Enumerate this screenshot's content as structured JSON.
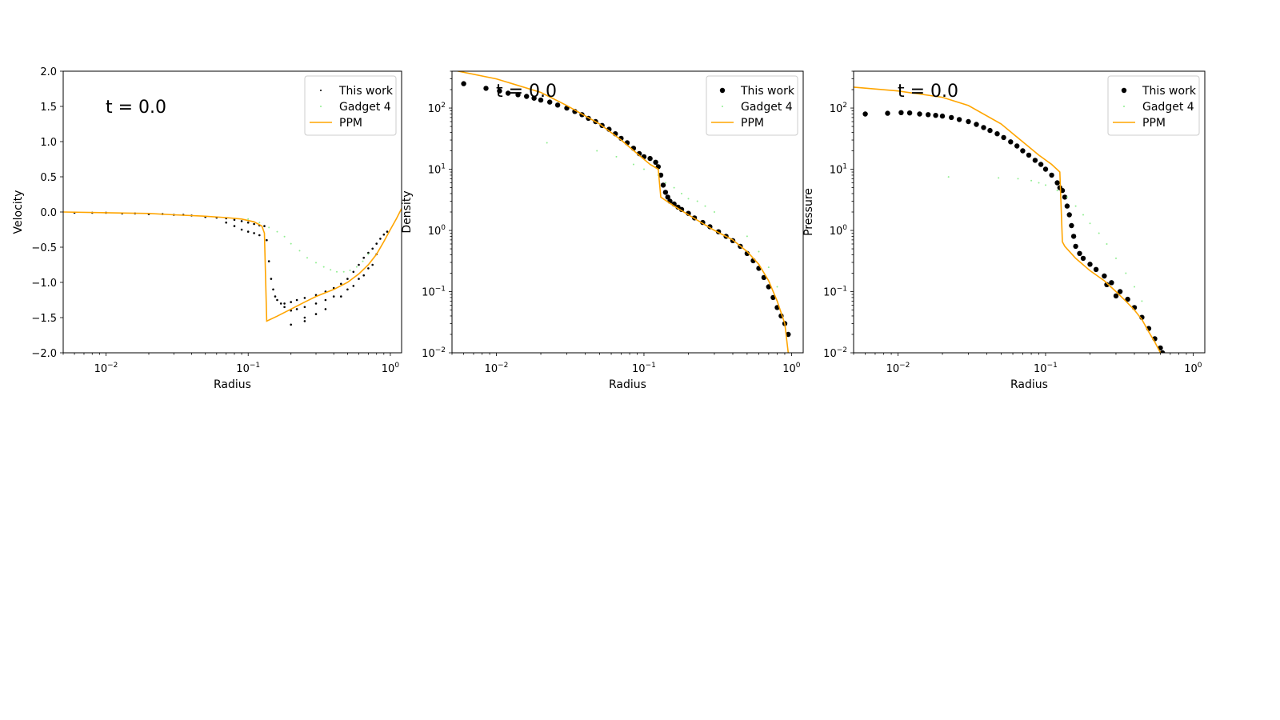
{
  "figure": {
    "background": "#ffffff"
  },
  "legend_labels": [
    "This work",
    "Gadget 4",
    "PPM"
  ],
  "chart_data": [
    {
      "type": "scatter",
      "title": "",
      "annotation": "t = 0.0",
      "xlabel": "Radius",
      "ylabel": "Velocity",
      "xscale": "log",
      "yscale": "linear",
      "xlim": [
        0.005,
        1.2
      ],
      "ylim": [
        -2.0,
        2.0
      ],
      "x_ticks": [
        0.01,
        0.1,
        1
      ],
      "x_tick_labels": [
        "10",
        "10",
        "10"
      ],
      "x_tick_exponents": [
        "−2",
        "−1",
        "0"
      ],
      "y_ticks": [
        -2.0,
        -1.5,
        -1.0,
        -0.5,
        0.0,
        0.5,
        1.0,
        1.5,
        2.0
      ],
      "y_tick_labels": [
        "−2.0",
        "−1.5",
        "−1.0",
        "−0.5",
        "0.0",
        "0.5",
        "1.0",
        "1.5",
        "2.0"
      ],
      "legend_position": "top-right",
      "grid": false,
      "series": [
        {
          "name": "This work",
          "kind": "scatter",
          "marker": "small-dot",
          "color": "#000000",
          "x": [
            0.006,
            0.008,
            0.01,
            0.013,
            0.016,
            0.02,
            0.025,
            0.03,
            0.035,
            0.04,
            0.05,
            0.06,
            0.07,
            0.08,
            0.09,
            0.1,
            0.11,
            0.12,
            0.13,
            0.135,
            0.14,
            0.145,
            0.15,
            0.155,
            0.16,
            0.17,
            0.18,
            0.2,
            0.22,
            0.25,
            0.3,
            0.35,
            0.4,
            0.45,
            0.5,
            0.55,
            0.6,
            0.65,
            0.7,
            0.75,
            0.8,
            0.85,
            0.9,
            0.95,
            0.07,
            0.08,
            0.09,
            0.1,
            0.11,
            0.12,
            0.18,
            0.2,
            0.22,
            0.25,
            0.3,
            0.35,
            0.4,
            0.5,
            0.6,
            0.7,
            0.8,
            0.25,
            0.3,
            0.35,
            0.45,
            0.55,
            0.65,
            0.75,
            0.2,
            0.25
          ],
          "y": [
            -0.01,
            -0.01,
            -0.01,
            -0.02,
            -0.02,
            -0.03,
            -0.03,
            -0.04,
            -0.04,
            -0.05,
            -0.07,
            -0.08,
            -0.09,
            -0.11,
            -0.13,
            -0.15,
            -0.17,
            -0.19,
            -0.2,
            -0.4,
            -0.7,
            -0.95,
            -1.1,
            -1.2,
            -1.25,
            -1.3,
            -1.3,
            -1.28,
            -1.25,
            -1.22,
            -1.18,
            -1.13,
            -1.08,
            -1.02,
            -0.95,
            -0.85,
            -0.75,
            -0.65,
            -0.58,
            -0.52,
            -0.45,
            -0.38,
            -0.32,
            -0.28,
            -0.15,
            -0.2,
            -0.25,
            -0.28,
            -0.3,
            -0.33,
            -1.35,
            -1.4,
            -1.38,
            -1.35,
            -1.3,
            -1.25,
            -1.2,
            -1.1,
            -0.95,
            -0.8,
            -0.6,
            -1.55,
            -1.45,
            -1.38,
            -1.2,
            -1.05,
            -0.9,
            -0.75,
            -1.6,
            -1.5
          ]
        },
        {
          "name": "Gadget 4",
          "kind": "scatter",
          "marker": "small-dot",
          "color": "#90ee90",
          "x": [
            0.1,
            0.12,
            0.14,
            0.16,
            0.18,
            0.2,
            0.23,
            0.26,
            0.3,
            0.34,
            0.38,
            0.42,
            0.47,
            0.52,
            0.58,
            0.64,
            0.7
          ],
          "y": [
            -0.1,
            -0.15,
            -0.22,
            -0.28,
            -0.35,
            -0.45,
            -0.55,
            -0.65,
            -0.72,
            -0.78,
            -0.82,
            -0.85,
            -0.85,
            -0.83,
            -0.78,
            -0.7,
            -0.6
          ]
        },
        {
          "name": "PPM",
          "kind": "line",
          "color": "#ffa500",
          "x": [
            0.005,
            0.01,
            0.02,
            0.03,
            0.05,
            0.07,
            0.09,
            0.11,
            0.125,
            0.13,
            0.135,
            0.16,
            0.2,
            0.25,
            0.3,
            0.4,
            0.5,
            0.6,
            0.7,
            0.8,
            0.9,
            1.0,
            1.1,
            1.2
          ],
          "y": [
            0.0,
            -0.01,
            -0.02,
            -0.04,
            -0.06,
            -0.08,
            -0.1,
            -0.14,
            -0.2,
            -0.3,
            -1.55,
            -1.48,
            -1.38,
            -1.28,
            -1.2,
            -1.1,
            -1.0,
            -0.88,
            -0.75,
            -0.6,
            -0.42,
            -0.25,
            -0.1,
            0.05
          ]
        }
      ]
    },
    {
      "type": "scatter",
      "title": "",
      "annotation": "t = 0.0",
      "xlabel": "Radius",
      "ylabel": "Density",
      "xscale": "log",
      "yscale": "log",
      "xlim": [
        0.005,
        1.2
      ],
      "ylim": [
        0.01,
        400
      ],
      "x_ticks": [
        0.01,
        0.1,
        1
      ],
      "x_tick_labels": [
        "10",
        "10",
        "10"
      ],
      "x_tick_exponents": [
        "−2",
        "−1",
        "0"
      ],
      "y_ticks": [
        0.01,
        0.1,
        1,
        10,
        100
      ],
      "y_tick_labels": [
        "10",
        "10",
        "10",
        "10",
        "10"
      ],
      "y_tick_exponents": [
        "−2",
        "−1",
        "0",
        "1",
        "2"
      ],
      "legend_position": "top-right",
      "grid": false,
      "series": [
        {
          "name": "This work",
          "kind": "scatter",
          "marker": "dot",
          "color": "#000000",
          "x": [
            0.006,
            0.0085,
            0.0105,
            0.012,
            0.014,
            0.016,
            0.018,
            0.02,
            0.023,
            0.026,
            0.03,
            0.034,
            0.038,
            0.042,
            0.047,
            0.052,
            0.058,
            0.064,
            0.07,
            0.077,
            0.085,
            0.093,
            0.1,
            0.11,
            0.12,
            0.125,
            0.13,
            0.135,
            0.14,
            0.145,
            0.15,
            0.16,
            0.17,
            0.18,
            0.2,
            0.22,
            0.25,
            0.28,
            0.32,
            0.36,
            0.4,
            0.45,
            0.5,
            0.55,
            0.6,
            0.65,
            0.7,
            0.75,
            0.8,
            0.85,
            0.9,
            0.95
          ],
          "y": [
            250,
            210,
            190,
            175,
            165,
            155,
            145,
            135,
            125,
            112,
            100,
            88,
            78,
            68,
            60,
            52,
            45,
            38,
            32,
            27,
            22,
            18,
            16,
            15,
            13,
            11,
            8,
            5.5,
            4.2,
            3.5,
            3.0,
            2.7,
            2.4,
            2.2,
            1.9,
            1.6,
            1.35,
            1.15,
            0.95,
            0.8,
            0.68,
            0.55,
            0.42,
            0.32,
            0.24,
            0.17,
            0.12,
            0.08,
            0.055,
            0.04,
            0.03,
            0.02
          ]
        },
        {
          "name": "Gadget 4",
          "kind": "scatter",
          "marker": "small-dot",
          "color": "#90ee90",
          "x": [
            0.022,
            0.048,
            0.065,
            0.085,
            0.1,
            0.125,
            0.14,
            0.16,
            0.18,
            0.2,
            0.23,
            0.26,
            0.3,
            0.5,
            0.6,
            0.7,
            0.8
          ],
          "y": [
            27,
            20,
            16,
            12,
            10,
            8,
            6,
            5,
            4,
            3.3,
            3.0,
            2.5,
            2.0,
            0.8,
            0.45,
            0.25,
            0.12
          ]
        },
        {
          "name": "PPM",
          "kind": "line",
          "color": "#ffa500",
          "x": [
            0.005,
            0.01,
            0.02,
            0.03,
            0.05,
            0.07,
            0.09,
            0.11,
            0.125,
            0.13,
            0.135,
            0.16,
            0.2,
            0.25,
            0.3,
            0.4,
            0.5,
            0.6,
            0.7,
            0.8,
            0.9,
            0.95
          ],
          "y": [
            420,
            300,
            180,
            110,
            55,
            30,
            18,
            12,
            10,
            3.5,
            3.3,
            2.5,
            1.8,
            1.3,
            1.0,
            0.7,
            0.45,
            0.28,
            0.15,
            0.07,
            0.03,
            0.01
          ]
        }
      ]
    },
    {
      "type": "scatter",
      "title": "",
      "annotation": "t = 0.0",
      "xlabel": "Radius",
      "ylabel": "Pressure",
      "xscale": "log",
      "yscale": "log",
      "xlim": [
        0.005,
        1.2
      ],
      "ylim": [
        0.01,
        400
      ],
      "x_ticks": [
        0.01,
        0.1,
        1
      ],
      "x_tick_labels": [
        "10",
        "10",
        "10"
      ],
      "x_tick_exponents": [
        "−2",
        "−1",
        "0"
      ],
      "y_ticks": [
        0.01,
        0.1,
        1,
        10,
        100
      ],
      "y_tick_labels": [
        "10",
        "10",
        "10",
        "10",
        "10"
      ],
      "y_tick_exponents": [
        "−2",
        "−1",
        "0",
        "1",
        "2"
      ],
      "legend_position": "top-right",
      "grid": false,
      "series": [
        {
          "name": "This work",
          "kind": "scatter",
          "marker": "dot",
          "color": "#000000",
          "x": [
            0.006,
            0.0085,
            0.0105,
            0.012,
            0.014,
            0.016,
            0.018,
            0.02,
            0.023,
            0.026,
            0.03,
            0.034,
            0.038,
            0.042,
            0.047,
            0.052,
            0.058,
            0.064,
            0.07,
            0.077,
            0.085,
            0.093,
            0.1,
            0.11,
            0.12,
            0.125,
            0.13,
            0.135,
            0.14,
            0.145,
            0.15,
            0.155,
            0.16,
            0.17,
            0.18,
            0.2,
            0.22,
            0.25,
            0.28,
            0.32,
            0.36,
            0.4,
            0.45,
            0.5,
            0.55,
            0.6,
            0.62,
            0.26,
            0.3
          ],
          "y": [
            80,
            82,
            84,
            83,
            80,
            78,
            76,
            74,
            70,
            65,
            60,
            54,
            48,
            43,
            38,
            33,
            28,
            24,
            20,
            17,
            14,
            12,
            10,
            8,
            6,
            5,
            4.5,
            3.5,
            2.5,
            1.8,
            1.2,
            0.8,
            0.55,
            0.42,
            0.35,
            0.28,
            0.23,
            0.18,
            0.14,
            0.1,
            0.075,
            0.055,
            0.038,
            0.025,
            0.017,
            0.012,
            0.01,
            0.13,
            0.085
          ]
        },
        {
          "name": "Gadget 4",
          "kind": "scatter",
          "marker": "small-dot",
          "color": "#90ee90",
          "x": [
            0.022,
            0.048,
            0.065,
            0.08,
            0.09,
            0.1,
            0.12,
            0.14,
            0.16,
            0.18,
            0.2,
            0.23,
            0.26,
            0.3,
            0.35,
            0.4,
            0.45
          ],
          "y": [
            7.5,
            7.2,
            7.0,
            6.5,
            6.0,
            5.5,
            4.5,
            3.5,
            2.5,
            1.8,
            1.3,
            0.9,
            0.6,
            0.35,
            0.2,
            0.12,
            0.07
          ]
        },
        {
          "name": "PPM",
          "kind": "line",
          "color": "#ffa500",
          "x": [
            0.005,
            0.01,
            0.02,
            0.03,
            0.05,
            0.07,
            0.09,
            0.11,
            0.125,
            0.13,
            0.135,
            0.16,
            0.2,
            0.25,
            0.3,
            0.35,
            0.4,
            0.45,
            0.5,
            0.55,
            0.6
          ],
          "y": [
            220,
            190,
            150,
            110,
            55,
            28,
            17,
            12,
            9,
            0.65,
            0.55,
            0.35,
            0.22,
            0.15,
            0.1,
            0.07,
            0.05,
            0.035,
            0.022,
            0.015,
            0.01
          ]
        }
      ]
    }
  ]
}
